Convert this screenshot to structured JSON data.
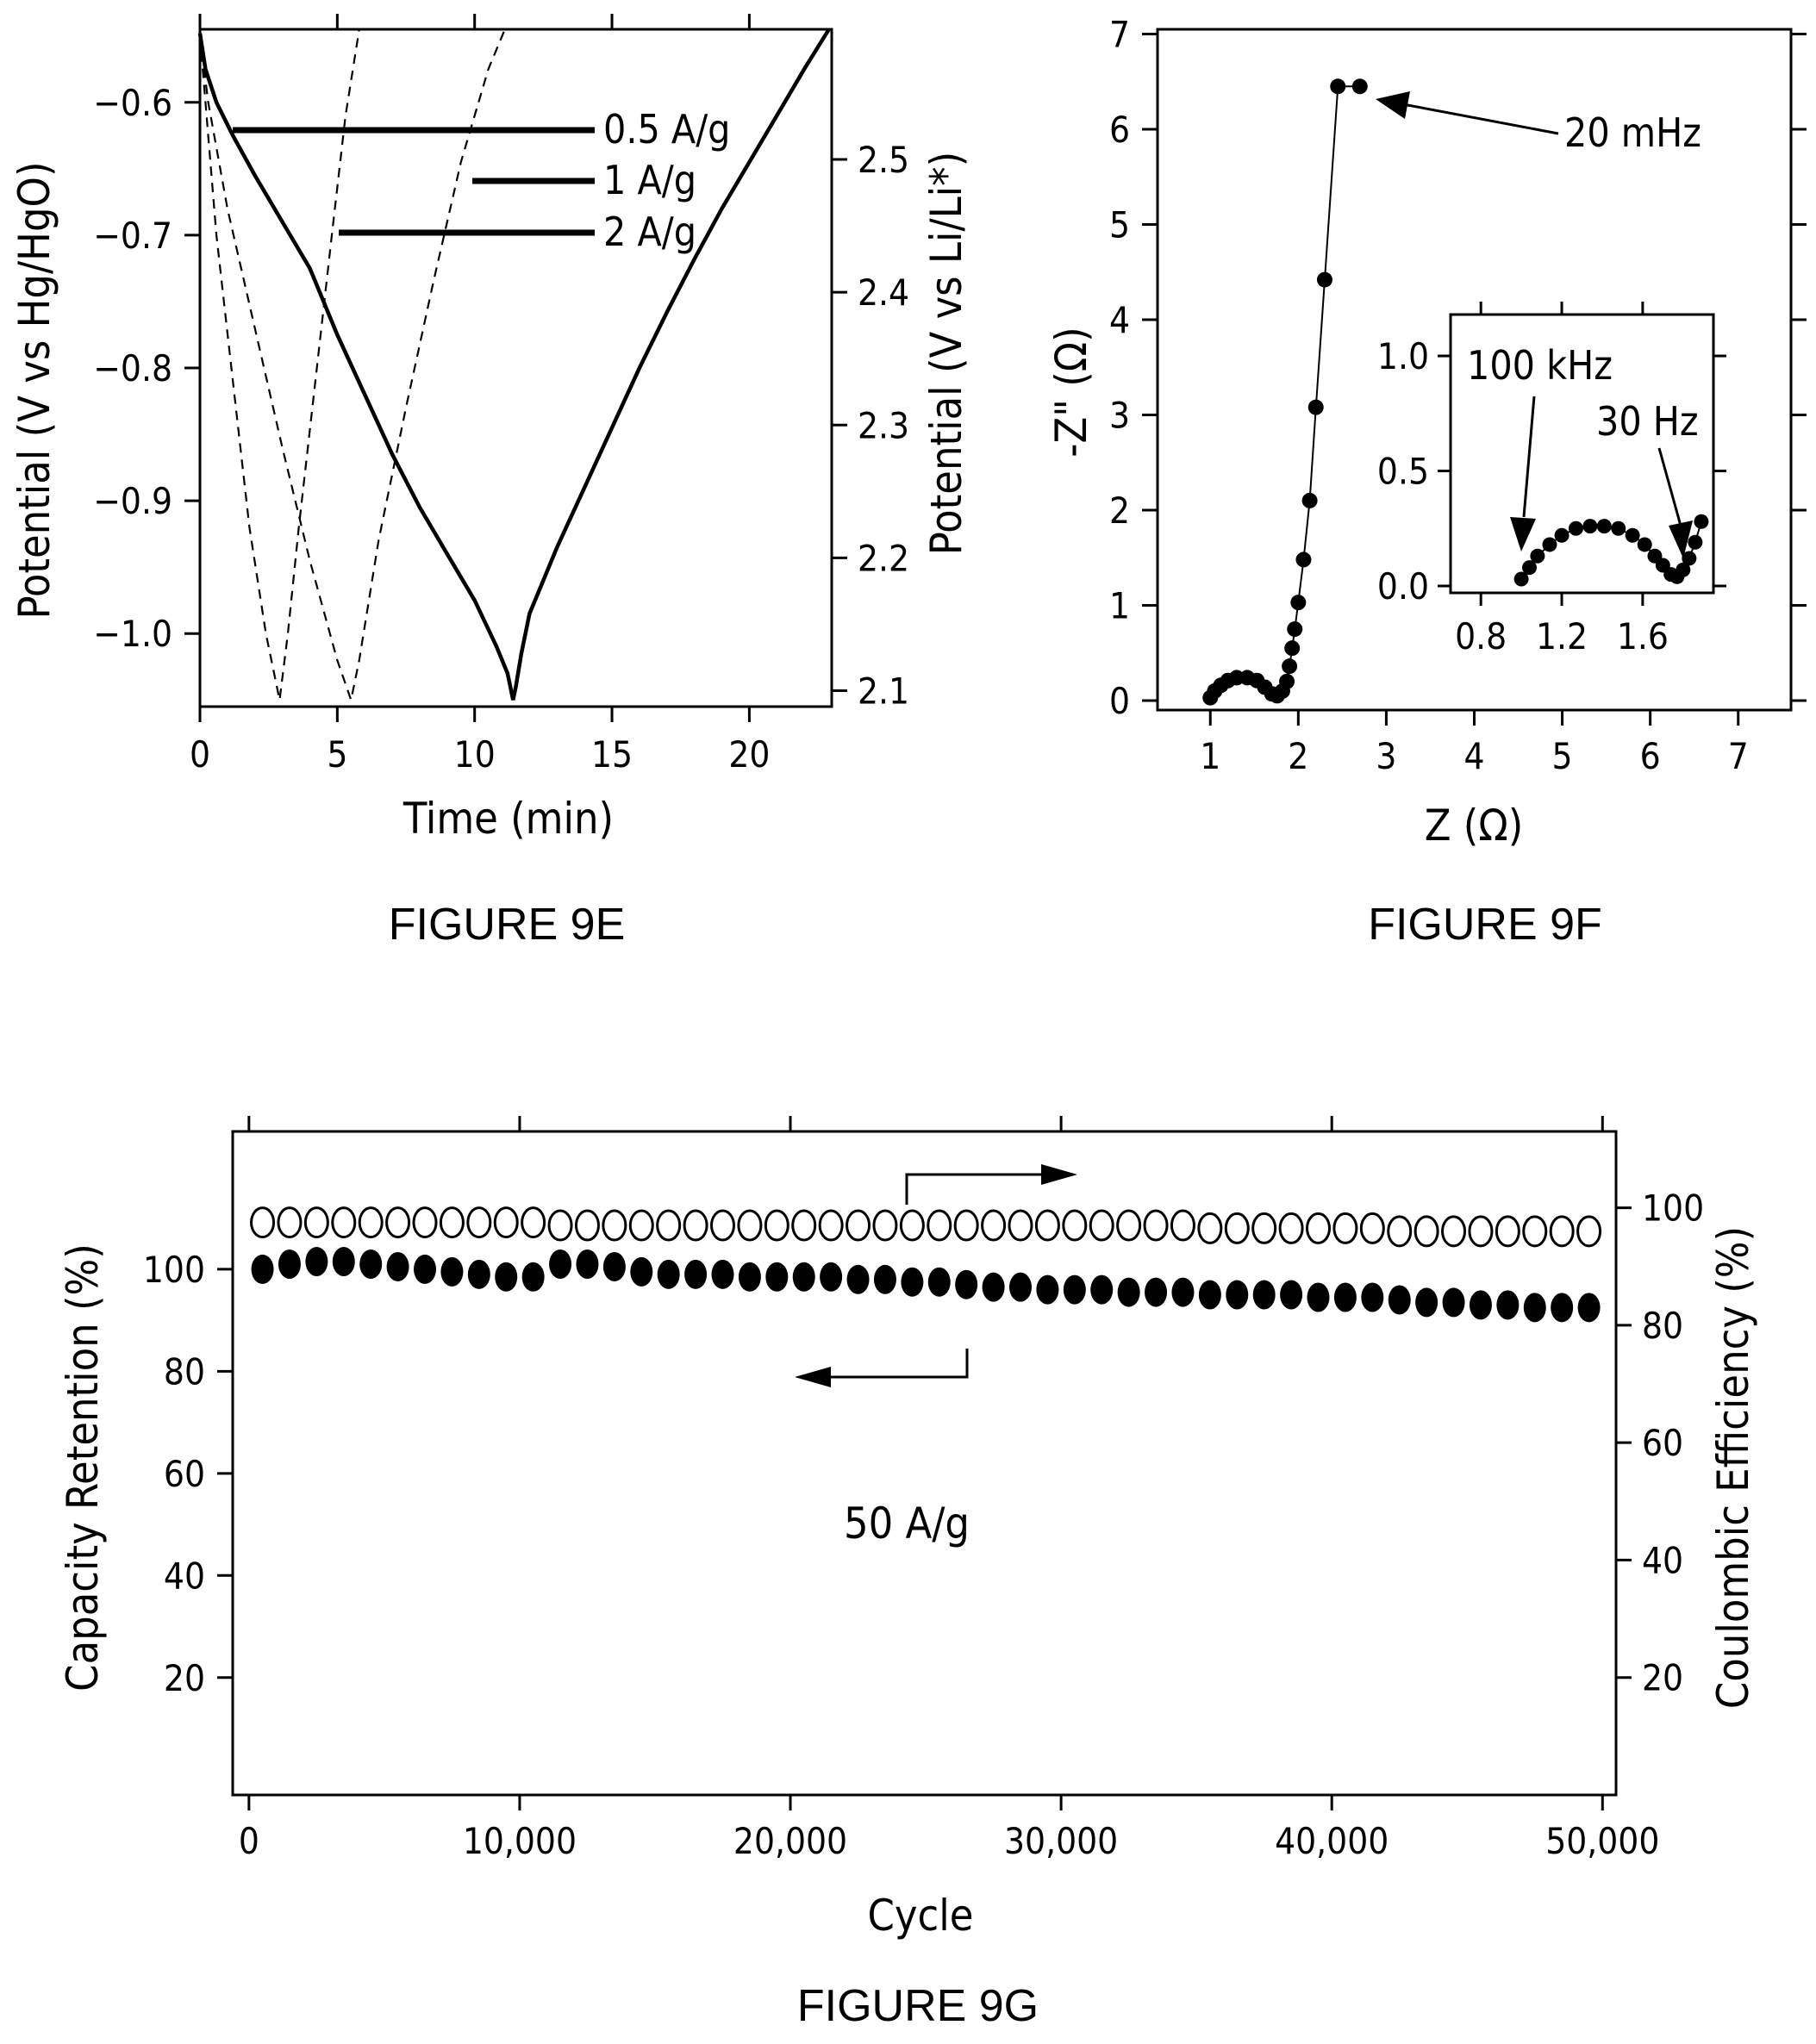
{
  "figures": {
    "e": {
      "caption": "FIGURE 9E"
    },
    "f": {
      "caption": "FIGURE 9F"
    },
    "g": {
      "caption": "FIGURE 9G"
    }
  },
  "chart_data": [
    {
      "id": "9E",
      "type": "line",
      "xlabel": "Time (min)",
      "ylabel": "Potential (V vs Hg/HgO)",
      "y2label": "Potential (V vs Li/Li*)",
      "xlim": [
        0,
        23
      ],
      "ylim": [
        -1.055,
        -0.545
      ],
      "y2lim": [
        2.088,
        2.598
      ],
      "x_ticks": [
        0,
        5,
        10,
        15,
        20
      ],
      "y_ticks": [
        -0.6,
        -0.7,
        -0.8,
        -0.9,
        -1.0
      ],
      "y_tick_labels": [
        "-0.6",
        "-0.7",
        "-0.8",
        "-0.9",
        "-1.0"
      ],
      "y2_ticks": [
        2.5,
        2.4,
        2.3,
        2.2,
        2.1
      ],
      "series": [
        {
          "name": "0.5 A/g",
          "style": "solid",
          "x": [
            0,
            0.2,
            0.6,
            1.2,
            2,
            3,
            4,
            4.5,
            5,
            6,
            7,
            8,
            9,
            10,
            10.8,
            11.2,
            11.4,
            11.5,
            11.7,
            12,
            13,
            14,
            15,
            16,
            17,
            18,
            19,
            20,
            21,
            22,
            22.9
          ],
          "y": [
            -0.548,
            -0.575,
            -0.6,
            -0.625,
            -0.655,
            -0.69,
            -0.725,
            -0.75,
            -0.775,
            -0.82,
            -0.865,
            -0.905,
            -0.94,
            -0.975,
            -1.01,
            -1.03,
            -1.05,
            -1.04,
            -1.015,
            -0.985,
            -0.935,
            -0.89,
            -0.845,
            -0.8,
            -0.758,
            -0.718,
            -0.68,
            -0.645,
            -0.61,
            -0.575,
            -0.545
          ]
        },
        {
          "name": "1 A/g",
          "style": "dashed",
          "x": [
            0,
            0.3,
            1,
            2,
            3,
            4,
            5,
            5.5,
            5.8,
            6.5,
            7.5,
            8.5,
            9.5,
            10.5,
            11.1
          ],
          "y": [
            -0.55,
            -0.6,
            -0.68,
            -0.77,
            -0.86,
            -0.945,
            -1.02,
            -1.05,
            -1.02,
            -0.93,
            -0.83,
            -0.735,
            -0.645,
            -0.575,
            -0.545
          ]
        },
        {
          "name": "2 A/g",
          "style": "dashed",
          "x": [
            0,
            0.2,
            0.6,
            1.2,
            1.8,
            2.4,
            2.9,
            3.2,
            3.6,
            4.2,
            4.8,
            5.3,
            5.8
          ],
          "y": [
            -0.55,
            -0.6,
            -0.7,
            -0.81,
            -0.92,
            -1.0,
            -1.05,
            -1.0,
            -0.92,
            -0.81,
            -0.7,
            -0.61,
            -0.545
          ]
        }
      ],
      "legend": [
        "0.5 A/g",
        "1 A/g",
        "2 A/g"
      ]
    },
    {
      "id": "9F",
      "type": "scatter",
      "xlabel": "Z (Ω)",
      "ylabel": "-Z\" (Ω)",
      "xlim": [
        0.4,
        7.6
      ],
      "ylim": [
        -0.1,
        7.05
      ],
      "x_ticks": [
        1,
        2,
        3,
        4,
        5,
        6,
        7
      ],
      "y_ticks": [
        0,
        1,
        2,
        3,
        4,
        5,
        6,
        7
      ],
      "series": [
        {
          "name": "",
          "x": [
            1.0,
            1.05,
            1.12,
            1.2,
            1.3,
            1.42,
            1.53,
            1.62,
            1.7,
            1.76,
            1.82,
            1.87,
            1.9,
            1.93,
            1.96,
            2.0,
            2.06,
            2.13,
            2.2,
            2.3,
            2.45,
            2.7
          ],
          "y": [
            0.03,
            0.1,
            0.16,
            0.21,
            0.24,
            0.24,
            0.21,
            0.14,
            0.07,
            0.05,
            0.1,
            0.2,
            0.36,
            0.55,
            0.75,
            1.03,
            1.48,
            2.1,
            3.08,
            4.42,
            6.45,
            6.45
          ]
        }
      ],
      "annotations": [
        "20 mHz"
      ],
      "inset": {
        "xlim": [
          0.65,
          1.95
        ],
        "ylim": [
          -0.03,
          1.18
        ],
        "x_ticks": [
          0.8,
          1.2,
          1.6
        ],
        "x_tick_labels": [
          "0.8",
          "1.2",
          "1.6"
        ],
        "y_ticks": [
          0.0,
          0.5,
          1.0
        ],
        "y_tick_labels": [
          "0.0",
          "0.5",
          "1.0"
        ],
        "x": [
          1.0,
          1.04,
          1.08,
          1.14,
          1.2,
          1.27,
          1.34,
          1.41,
          1.48,
          1.55,
          1.61,
          1.66,
          1.7,
          1.74,
          1.77,
          1.8,
          1.83,
          1.86,
          1.89
        ],
        "y": [
          0.03,
          0.08,
          0.13,
          0.18,
          0.22,
          0.25,
          0.26,
          0.26,
          0.25,
          0.22,
          0.18,
          0.13,
          0.09,
          0.05,
          0.04,
          0.07,
          0.12,
          0.19,
          0.28
        ],
        "annotations": [
          "100 kHz",
          "30 Hz"
        ]
      }
    },
    {
      "id": "9G",
      "type": "scatter",
      "xlabel": "Cycle",
      "ylabel": "Capacity Retention (%)",
      "y2label": "Coulombic Efficiency (%)",
      "xlim": [
        -600,
        50500
      ],
      "ylim": [
        -3,
        127
      ],
      "y2lim": [
        0,
        113
      ],
      "x_ticks": [
        0,
        10000,
        20000,
        30000,
        40000,
        50000
      ],
      "x_tick_labels": [
        "0",
        "10,000",
        "20,000",
        "30,000",
        "40,000",
        "50,000"
      ],
      "y_ticks": [
        20,
        40,
        60,
        80,
        100
      ],
      "y2_ticks": [
        20,
        40,
        60,
        80,
        100
      ],
      "annotations": [
        "50 A/g"
      ],
      "series": [
        {
          "name": "",
          "axis": "left",
          "marker": "filled",
          "x": [
            500,
            1500,
            2500,
            3500,
            4500,
            5500,
            6500,
            7500,
            8500,
            9500,
            10500,
            11500,
            12500,
            13500,
            14500,
            15500,
            16500,
            17500,
            18500,
            19500,
            20500,
            21500,
            22500,
            23500,
            24500,
            25500,
            26500,
            27500,
            28500,
            29500,
            30500,
            31500,
            32500,
            33500,
            34500,
            35500,
            36500,
            37500,
            38500,
            39500,
            40500,
            41500,
            42500,
            43500,
            44500,
            45500,
            46500,
            47500,
            48500,
            49500
          ],
          "y": [
            100,
            101,
            101.5,
            101.5,
            101,
            100.5,
            100,
            99.5,
            99,
            98.5,
            98.5,
            101,
            101,
            100.5,
            99.5,
            99,
            99,
            99,
            98.5,
            98.5,
            98.5,
            98.5,
            98,
            98,
            97.5,
            97.5,
            97,
            96.5,
            96.5,
            96,
            96,
            96,
            95.5,
            95.5,
            95.5,
            95,
            95,
            95,
            95,
            94.5,
            94.5,
            94.5,
            94,
            93.5,
            93.5,
            93,
            93,
            92.5,
            92.5,
            92.5
          ]
        },
        {
          "name": "",
          "axis": "right",
          "marker": "open",
          "x": [
            500,
            1500,
            2500,
            3500,
            4500,
            5500,
            6500,
            7500,
            8500,
            9500,
            10500,
            11500,
            12500,
            13500,
            14500,
            15500,
            16500,
            17500,
            18500,
            19500,
            20500,
            21500,
            22500,
            23500,
            24500,
            25500,
            26500,
            27500,
            28500,
            29500,
            30500,
            31500,
            32500,
            33500,
            34500,
            35500,
            36500,
            37500,
            38500,
            39500,
            40500,
            41500,
            42500,
            43500,
            44500,
            45500,
            46500,
            47500,
            48500,
            49500
          ],
          "y": [
            97.5,
            97.5,
            97.5,
            97.5,
            97.5,
            97.5,
            97.5,
            97.5,
            97.5,
            97.5,
            97.5,
            97,
            97,
            97,
            97,
            97,
            97,
            97,
            97,
            97,
            97,
            97,
            97,
            97,
            97,
            97,
            97,
            97,
            97,
            97,
            97,
            97,
            97,
            97,
            97,
            96.5,
            96.5,
            96.5,
            96.5,
            96.5,
            96.5,
            96.5,
            96,
            96,
            96,
            96,
            96,
            96,
            96,
            96
          ]
        }
      ]
    }
  ]
}
